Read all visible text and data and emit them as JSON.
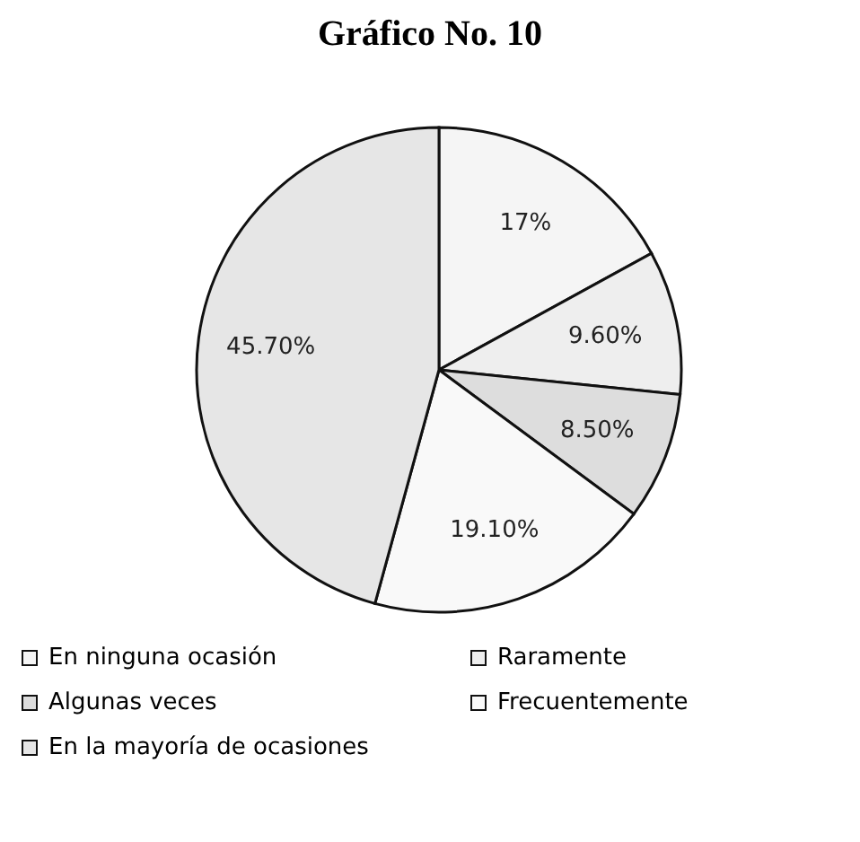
{
  "chart_data": {
    "type": "pie",
    "title": "Gráfico No. 10",
    "categories": [
      "En ninguna ocasión",
      "Raramente",
      "Algunas veces",
      "Frecuentemente",
      "En la mayoría de ocasiones"
    ],
    "values": [
      17,
      9.6,
      8.5,
      19.1,
      45.7
    ],
    "value_labels": [
      "17%",
      "9.60%",
      "8.50%",
      "19.10%",
      "45.70%"
    ],
    "colors": [
      "#f5f5f5",
      "#eeeeee",
      "#dddddd",
      "#f9f9f9",
      "#e6e6e6"
    ],
    "legend": "bottom"
  }
}
